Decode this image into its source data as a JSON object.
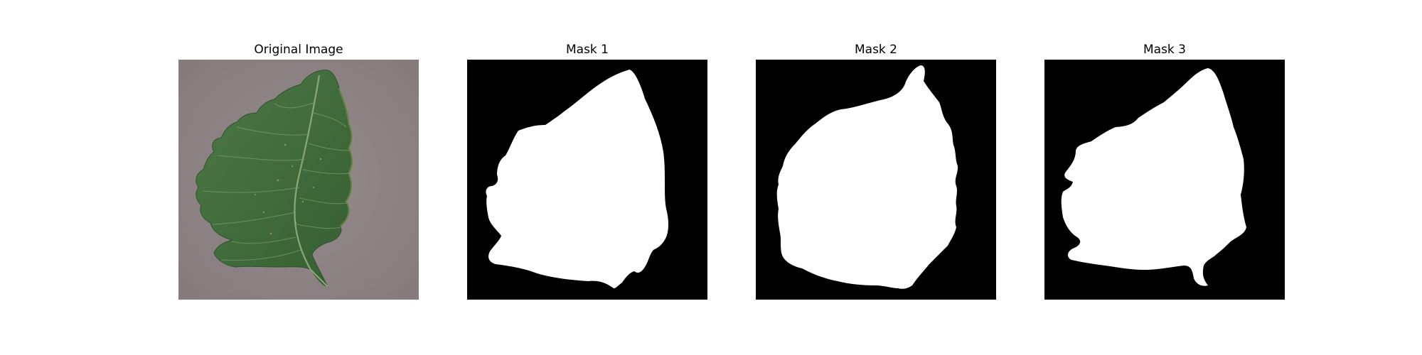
{
  "panels": [
    {
      "title": "Original Image"
    },
    {
      "title": "Mask 1"
    },
    {
      "title": "Mask 2"
    },
    {
      "title": "Mask 3"
    }
  ],
  "colors": {
    "background": "#8e8486",
    "leaf_dark": "#3f6a3a",
    "leaf_mid": "#557d48",
    "leaf_light": "#7a9a5a",
    "mask_bg": "#000000",
    "mask_fg": "#ffffff"
  }
}
